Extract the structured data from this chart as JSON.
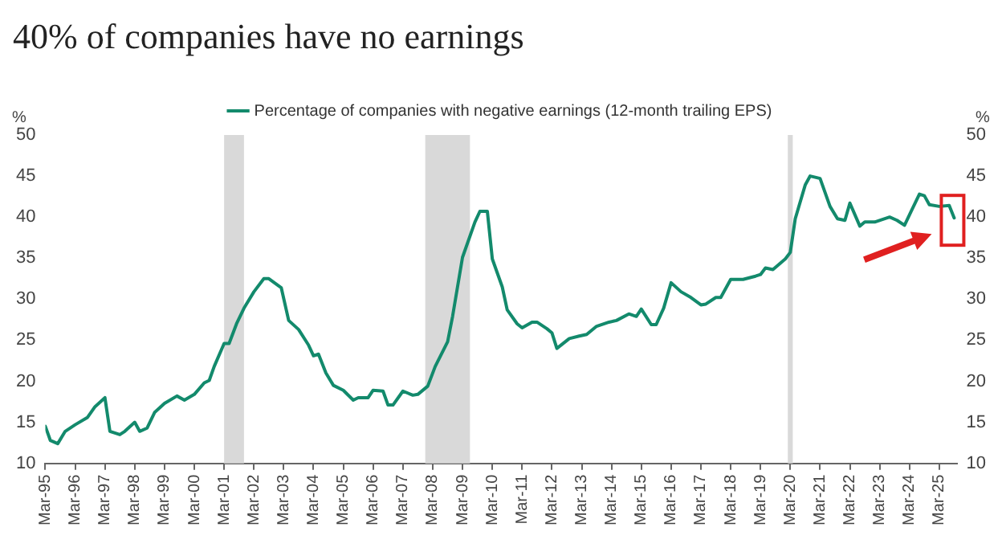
{
  "chart_data": {
    "type": "line",
    "title": "40% of companies have no earnings",
    "ylabel": "%",
    "y2label": "%",
    "x": [
      "1995-03",
      "1995-05",
      "1995-08",
      "1995-11",
      "1996-03",
      "1996-08",
      "1996-11",
      "1997-03",
      "1997-05",
      "1997-09",
      "1997-11",
      "1998-03",
      "1998-05",
      "1998-08",
      "1998-11",
      "1999-03",
      "1999-08",
      "1999-11",
      "2000-03",
      "2000-07",
      "2000-09",
      "2000-11",
      "2001-03",
      "2001-05",
      "2001-08",
      "2001-11",
      "2002-03",
      "2002-07",
      "2002-09",
      "2003-02",
      "2003-05",
      "2003-09",
      "2004-01",
      "2004-03",
      "2004-05",
      "2004-08",
      "2004-11",
      "2005-03",
      "2005-07",
      "2005-09",
      "2006-01",
      "2006-03",
      "2006-07",
      "2006-09",
      "2006-11",
      "2007-03",
      "2007-07",
      "2007-09",
      "2008-01",
      "2008-04",
      "2008-09",
      "2008-11",
      "2009-03",
      "2009-08",
      "2009-10",
      "2010-01",
      "2010-03",
      "2010-07",
      "2010-09",
      "2011-01",
      "2011-03",
      "2011-07",
      "2011-09",
      "2012-01",
      "2012-03",
      "2012-05",
      "2012-10",
      "2013-02",
      "2013-05",
      "2013-09",
      "2014-02",
      "2014-05",
      "2014-10",
      "2015-01",
      "2015-03",
      "2015-07",
      "2015-09",
      "2015-12",
      "2016-03",
      "2016-07",
      "2016-11",
      "2017-03",
      "2017-05",
      "2017-09",
      "2017-11",
      "2018-03",
      "2018-08",
      "2019-01",
      "2019-03",
      "2019-05",
      "2019-08",
      "2020-01",
      "2020-03",
      "2020-05",
      "2020-09",
      "2020-11",
      "2021-03",
      "2021-07",
      "2021-10",
      "2022-01",
      "2022-03",
      "2022-07",
      "2022-09",
      "2023-01",
      "2023-07",
      "2023-10",
      "2024-01",
      "2024-04",
      "2024-07",
      "2024-09",
      "2024-11",
      "2025-03",
      "2025-07",
      "2025-09"
    ],
    "series": [
      {
        "name": "Percentage of companies with negative earnings (12-month trailing EPS)",
        "color": "#138a6c",
        "values": [
          14.5,
          12.8,
          12.4,
          13.9,
          14.7,
          15.6,
          16.9,
          18.0,
          13.9,
          13.5,
          13.9,
          15.0,
          13.9,
          14.3,
          16.2,
          17.3,
          18.2,
          17.7,
          18.4,
          19.8,
          20.1,
          21.8,
          24.6,
          24.6,
          27.0,
          28.9,
          30.9,
          32.5,
          32.5,
          31.4,
          27.4,
          26.3,
          24.4,
          23.1,
          23.3,
          21.0,
          19.5,
          18.9,
          17.7,
          18.0,
          18.0,
          18.9,
          18.8,
          17.1,
          17.1,
          18.8,
          18.3,
          18.4,
          19.4,
          21.8,
          24.8,
          27.9,
          35.1,
          39.4,
          40.7,
          40.7,
          34.9,
          31.5,
          28.7,
          27.0,
          26.5,
          27.2,
          27.2,
          26.4,
          25.9,
          24.0,
          25.2,
          25.5,
          25.7,
          26.7,
          27.2,
          27.4,
          28.2,
          27.9,
          28.8,
          26.9,
          26.9,
          28.9,
          32.0,
          30.9,
          30.2,
          29.3,
          29.4,
          30.2,
          30.2,
          32.4,
          32.4,
          32.8,
          33.0,
          33.8,
          33.6,
          34.9,
          35.7,
          39.8,
          43.9,
          45.0,
          44.7,
          41.3,
          39.8,
          39.6,
          41.7,
          38.9,
          39.4,
          39.4,
          40.0,
          39.6,
          39.0,
          40.9,
          42.8,
          42.6,
          41.5,
          41.3,
          41.4,
          39.9
        ]
      }
    ],
    "xlim": [
      "1995-03",
      "2025-10"
    ],
    "xticks": [
      {
        "value": "1995-03",
        "label": "Mar-95"
      },
      {
        "value": "1996-03",
        "label": "Mar-96"
      },
      {
        "value": "1997-03",
        "label": "Mar-97"
      },
      {
        "value": "1998-03",
        "label": "Mar-98"
      },
      {
        "value": "1999-03",
        "label": "Mar-99"
      },
      {
        "value": "2000-03",
        "label": "Mar-00"
      },
      {
        "value": "2001-03",
        "label": "Mar-01"
      },
      {
        "value": "2002-03",
        "label": "Mar-02"
      },
      {
        "value": "2003-03",
        "label": "Mar-03"
      },
      {
        "value": "2004-03",
        "label": "Mar-04"
      },
      {
        "value": "2005-03",
        "label": "Mar-05"
      },
      {
        "value": "2006-03",
        "label": "Mar-06"
      },
      {
        "value": "2007-03",
        "label": "Mar-07"
      },
      {
        "value": "2008-03",
        "label": "Mar-08"
      },
      {
        "value": "2009-03",
        "label": "Mar-09"
      },
      {
        "value": "2010-03",
        "label": "Mar-10"
      },
      {
        "value": "2011-03",
        "label": "Mar-11"
      },
      {
        "value": "2012-03",
        "label": "Mar-12"
      },
      {
        "value": "2013-03",
        "label": "Mar-13"
      },
      {
        "value": "2014-03",
        "label": "Mar-14"
      },
      {
        "value": "2015-03",
        "label": "Mar-15"
      },
      {
        "value": "2016-03",
        "label": "Mar-16"
      },
      {
        "value": "2017-03",
        "label": "Mar-17"
      },
      {
        "value": "2018-03",
        "label": "Mar-18"
      },
      {
        "value": "2019-03",
        "label": "Mar-19"
      },
      {
        "value": "2020-03",
        "label": "Mar-20"
      },
      {
        "value": "2021-03",
        "label": "Mar-21"
      },
      {
        "value": "2022-03",
        "label": "Mar-22"
      },
      {
        "value": "2023-03",
        "label": "Mar-23"
      },
      {
        "value": "2024-03",
        "label": "Mar-24"
      },
      {
        "value": "2025-03",
        "label": "Mar-25"
      }
    ],
    "ylim": [
      10,
      50
    ],
    "yticks": [
      10,
      15,
      20,
      25,
      30,
      35,
      40,
      45,
      50
    ],
    "y2lim": [
      10,
      50
    ],
    "y2ticks": [
      10,
      15,
      20,
      25,
      30,
      35,
      40,
      45,
      50
    ],
    "bands": [
      {
        "axis": "x",
        "from": "2001-03",
        "to": "2001-11",
        "color": "#d9d9d9"
      },
      {
        "axis": "x",
        "from": "2007-12",
        "to": "2009-06",
        "color": "#d9d9d9"
      },
      {
        "axis": "x",
        "from": "2020-02",
        "to": "2020-04",
        "color": "#d9d9d9"
      }
    ],
    "grid": false,
    "legend": "top",
    "marker": "none",
    "line_style": "solid"
  }
}
